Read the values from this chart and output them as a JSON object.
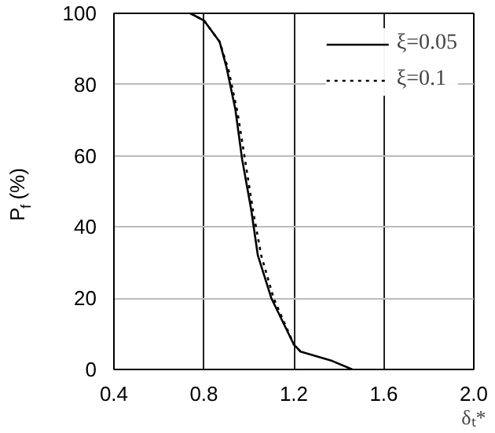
{
  "chart_data": {
    "type": "line",
    "xlabel": "δₜ*",
    "ylabel": "P$_{f}$(%)",
    "xlim": [
      0.4,
      2.0
    ],
    "xticks": [
      0.4,
      0.8,
      1.2,
      1.6,
      {
        "value": 2,
        "label": "2.0"
      }
    ],
    "ylim": [
      0,
      100
    ],
    "yticks": [
      0,
      20,
      40,
      60,
      80,
      100
    ],
    "grid": true,
    "legend": "top right",
    "series": [
      {
        "name": "ξ=0.05",
        "color": "#000000",
        "line_style": "solid",
        "x": [
          0.74,
          0.8,
          0.87,
          0.9,
          0.94,
          0.97,
          1.01,
          1.04,
          1.1,
          1.2,
          1.23,
          1.37,
          1.46
        ],
        "values": [
          100,
          98,
          92,
          85,
          73,
          59,
          45,
          32,
          20,
          7,
          5,
          2.4,
          0
        ]
      },
      {
        "name": "ξ=0.1",
        "color": "#000000",
        "line_style": "dotted",
        "x": [
          0.74,
          0.8,
          0.87,
          0.91,
          0.95,
          0.985,
          1.02,
          1.055,
          1.11,
          1.2,
          1.23
        ],
        "values": [
          100,
          98,
          92,
          84,
          72,
          58,
          44,
          32,
          20,
          7,
          5
        ]
      }
    ]
  }
}
